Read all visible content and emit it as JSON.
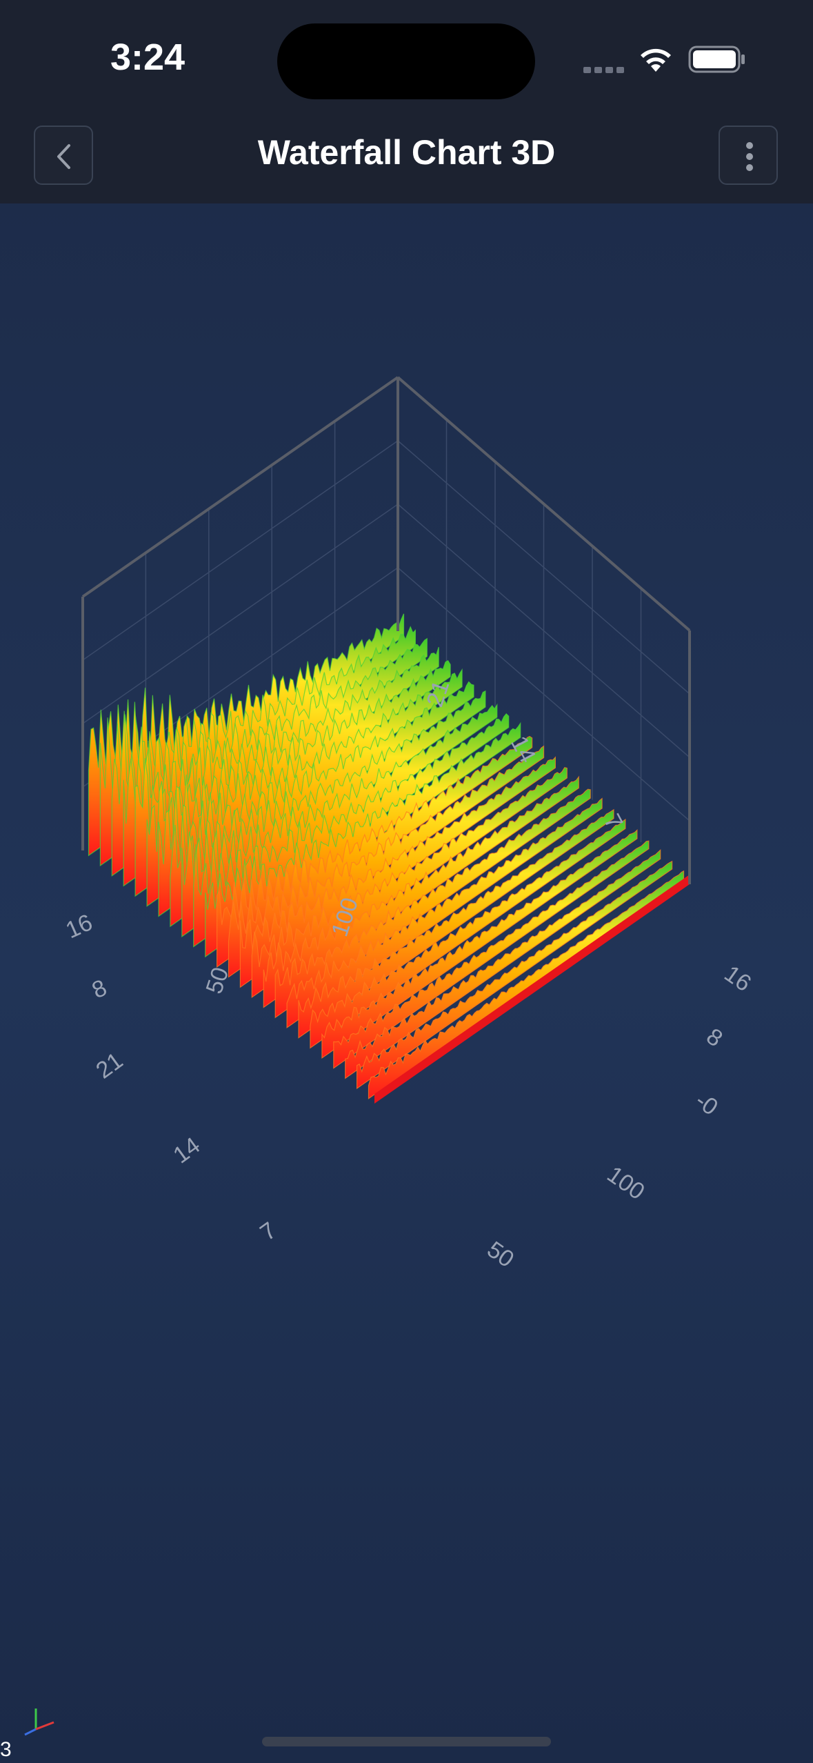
{
  "status_bar": {
    "time": "3:24"
  },
  "nav": {
    "title": "Waterfall Chart 3D",
    "back_icon": "chevron-left-icon",
    "more_icon": "more-vertical-icon"
  },
  "chart_data": {
    "type": "waterfall-3d",
    "title": "",
    "x_axis_ticks": [
      "50",
      "100"
    ],
    "z_axis_ticks": [
      "7",
      "14",
      "21"
    ],
    "y_axis_ticks": [
      "-0",
      "8",
      "16"
    ],
    "back_x_axis_ticks": [
      "50",
      "100"
    ],
    "back_z_axis_ticks": [
      "7",
      "14",
      "21"
    ],
    "left_y_axis_ticks": [
      "8",
      "16"
    ],
    "xlim": [
      0,
      128
    ],
    "zlim": [
      0,
      24
    ],
    "ylim": [
      0,
      22
    ],
    "colormap": [
      "#ff1a1a",
      "#ff6a10",
      "#ffb000",
      "#ffe620",
      "#3ec92a"
    ],
    "series_count": 25,
    "points_per_series": 128,
    "grid": true
  },
  "colors": {
    "background": "#213457",
    "header": "#1c2230",
    "axis_line": "#5a5e68"
  },
  "footer": {
    "corner_text": "3"
  }
}
